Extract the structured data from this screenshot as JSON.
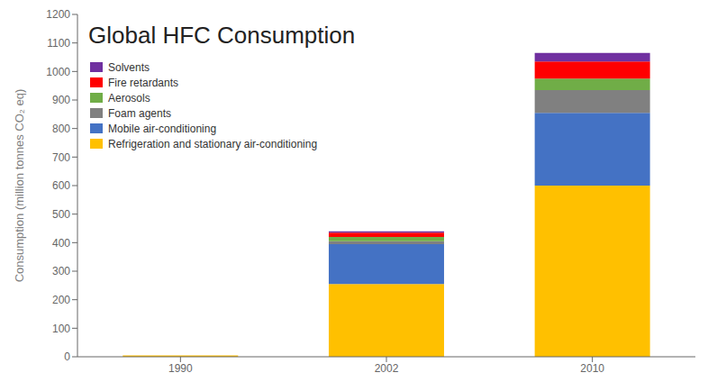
{
  "chart_data": {
    "type": "bar",
    "stacked": true,
    "title": "Global HFC Consumption",
    "y_label": "Consumption (million tonnes CO₂ eq)",
    "categories": [
      "1990",
      "2002",
      "2010"
    ],
    "series": [
      {
        "name": "Refrigeration and stationary air-conditioning",
        "color": "#FFC000",
        "values": [
          5,
          255,
          600
        ]
      },
      {
        "name": "Mobile air-conditioning",
        "color": "#4472C4",
        "values": [
          0,
          140,
          255
        ]
      },
      {
        "name": "Foam agents",
        "color": "#808080",
        "values": [
          0,
          10,
          80
        ]
      },
      {
        "name": "Aerosols",
        "color": "#70AD47",
        "values": [
          0,
          15,
          40
        ]
      },
      {
        "name": "Fire retardants",
        "color": "#FF0000",
        "values": [
          0,
          15,
          60
        ]
      },
      {
        "name": "Solvents",
        "color": "#7030A0",
        "values": [
          0,
          5,
          30
        ]
      }
    ],
    "ylim": [
      0,
      1200
    ],
    "yticks": [
      0,
      100,
      200,
      300,
      400,
      500,
      600,
      700,
      800,
      900,
      1000,
      1100,
      1200
    ],
    "grid": false,
    "legend": "upper left"
  }
}
